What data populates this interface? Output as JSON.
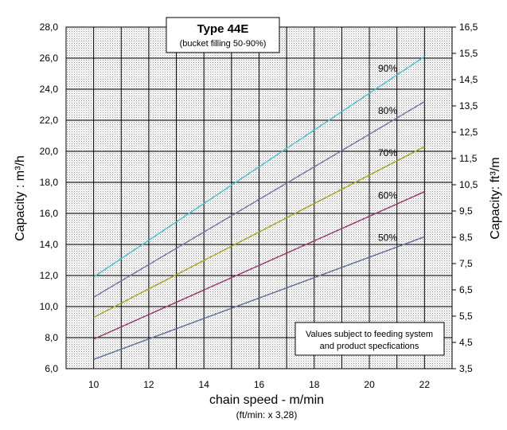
{
  "chart_data": {
    "type": "line",
    "title": "Type 44E",
    "subtitle": "(bucket filling 50-90%)",
    "xlabel": "chain speed - m/min",
    "xlabel_note": "(ft/min: x 3,28)",
    "ylabel_left": "Capacity : m³/h",
    "ylabel_right": "Capacity:  ft³/m",
    "xlim": [
      9,
      23
    ],
    "ylim_left": [
      6.0,
      28.0
    ],
    "ylim_right": [
      3.5,
      16.5
    ],
    "x_ticks": [
      "10",
      "12",
      "14",
      "16",
      "18",
      "20",
      "22"
    ],
    "y_ticks_left": [
      "6,0",
      "8,0",
      "10,0",
      "12,0",
      "14,0",
      "16,0",
      "18,0",
      "20,0",
      "22,0",
      "24,0",
      "26,0",
      "28,0"
    ],
    "y_ticks_right": [
      "3,5",
      "4,5",
      "5,5",
      "6,5",
      "7,5",
      "8,5",
      "9,5",
      "10,5",
      "11,5",
      "12,5",
      "13,5",
      "14,5",
      "15,5",
      "16,5"
    ],
    "grid": true,
    "note": [
      "Values subject to feeding system",
      "and product specfications"
    ],
    "series": [
      {
        "name": "50%",
        "x": [
          10,
          22
        ],
        "y": [
          6.6,
          14.5
        ],
        "color": "#5c6a9c"
      },
      {
        "name": "60%",
        "x": [
          10,
          22
        ],
        "y": [
          7.9,
          17.4
        ],
        "color": "#9b2f6a"
      },
      {
        "name": "70%",
        "x": [
          10,
          22
        ],
        "y": [
          9.3,
          20.3
        ],
        "color": "#a4a41a"
      },
      {
        "name": "80%",
        "x": [
          10,
          22
        ],
        "y": [
          10.6,
          23.2
        ],
        "color": "#6e74a8"
      },
      {
        "name": "90%",
        "x": [
          10,
          22
        ],
        "y": [
          11.9,
          26.1
        ],
        "color": "#47c1c8"
      }
    ]
  }
}
